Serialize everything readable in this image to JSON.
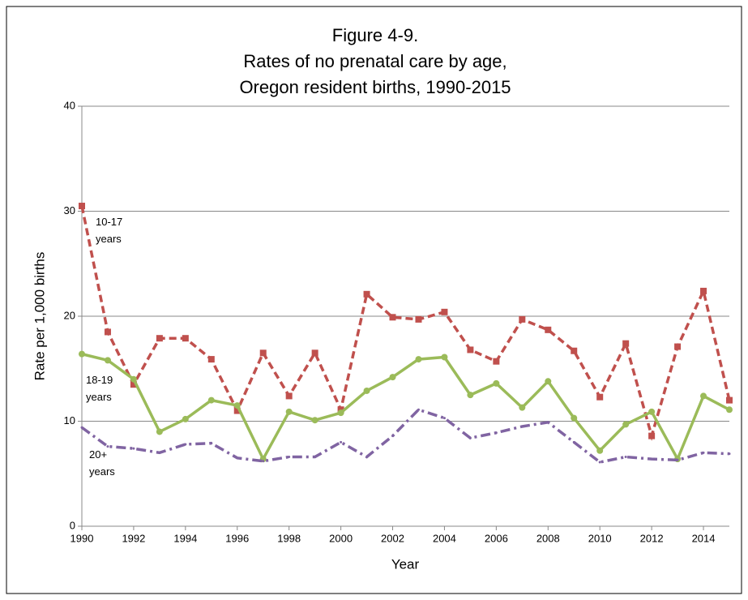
{
  "chart_data": {
    "type": "line",
    "title": [
      "Figure 4-9.",
      "Rates of no prenatal care by age,",
      "Oregon resident births, 1990-2015"
    ],
    "x_label": "Year",
    "y_label": "Rate per 1,000 births",
    "x": [
      1990,
      1991,
      1992,
      1993,
      1994,
      1995,
      1996,
      1997,
      1998,
      1999,
      2000,
      2001,
      2002,
      2003,
      2004,
      2005,
      2006,
      2007,
      2008,
      2009,
      2010,
      2011,
      2012,
      2013,
      2014,
      2015
    ],
    "xlim": [
      1990,
      2015
    ],
    "xticks": [
      1990,
      1992,
      1994,
      1996,
      1998,
      2000,
      2002,
      2004,
      2006,
      2008,
      2010,
      2012,
      2014
    ],
    "ylim": [
      0,
      40
    ],
    "yticks": [
      0,
      10,
      20,
      30,
      40
    ],
    "grid": true,
    "series": [
      {
        "name": "10-17 years",
        "color": "#c0504d",
        "marker": "square",
        "dash": "dash",
        "values": [
          30.5,
          18.5,
          13.5,
          17.9,
          17.9,
          15.9,
          11.0,
          16.5,
          12.4,
          16.5,
          11.1,
          22.1,
          19.9,
          19.7,
          20.4,
          16.8,
          15.7,
          19.7,
          18.7,
          16.7,
          12.3,
          17.4,
          8.6,
          17.1,
          22.4,
          12.0
        ]
      },
      {
        "name": "18-19 years",
        "color": "#9bbb59",
        "marker": "circle",
        "dash": "solid",
        "values": [
          16.4,
          15.8,
          14.0,
          9.0,
          10.2,
          12.0,
          11.5,
          6.4,
          10.9,
          10.1,
          10.8,
          12.9,
          14.2,
          15.9,
          16.1,
          12.5,
          13.6,
          11.3,
          13.8,
          10.3,
          7.2,
          9.7,
          10.9,
          6.4,
          12.4,
          11.1
        ]
      },
      {
        "name": "20+ years",
        "color": "#8064a2",
        "marker": "none",
        "dash": "dashdot",
        "values": [
          9.4,
          7.6,
          7.4,
          7.0,
          7.8,
          7.9,
          6.5,
          6.2,
          6.6,
          6.6,
          8.0,
          6.6,
          8.6,
          11.1,
          10.3,
          8.4,
          8.9,
          9.5,
          9.9,
          8.0,
          6.1,
          6.6,
          6.4,
          6.3,
          7.0,
          6.9
        ]
      }
    ]
  }
}
